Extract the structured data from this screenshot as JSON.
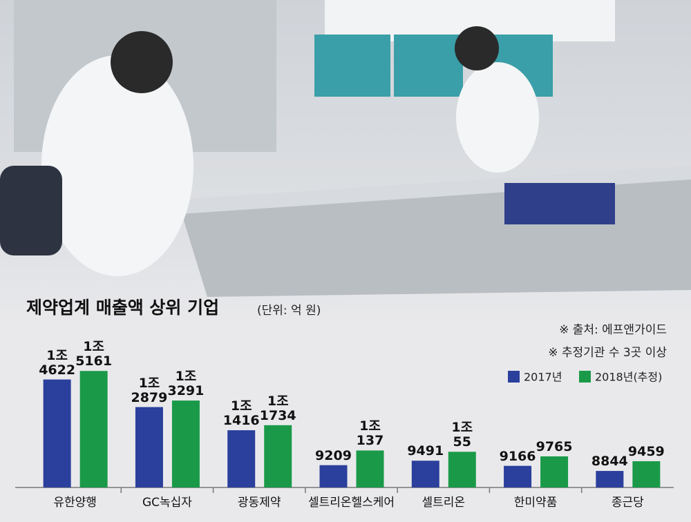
{
  "chart_data": {
    "type": "bar",
    "title": "제약업계 매출액 상위 기업",
    "subtitle": "(단위: 억 원)",
    "annotations": [
      "※ 출처: 에프앤가이드",
      "※ 추정기관 수 3곳 이상"
    ],
    "categories": [
      "유한양행",
      "GC녹십자",
      "광동제약",
      "셀트리온헬스케어",
      "셀트리온",
      "한미약품",
      "종근당"
    ],
    "series": [
      {
        "name": "2017년",
        "color": "#2b3f9c",
        "values": [
          14622,
          12879,
          11416,
          9209,
          9491,
          9166,
          8844
        ],
        "value_labels": [
          "1조\n4622",
          "1조\n2879",
          "1조\n1416",
          "9209",
          "9491",
          "9166",
          "8844"
        ]
      },
      {
        "name": "2018년(추정)",
        "color": "#1a9a48",
        "values": [
          15161,
          13291,
          11734,
          10137,
          10055,
          9765,
          9459
        ],
        "value_labels": [
          "1조\n5161",
          "1조\n3291",
          "1조\n1734",
          "1조\n137",
          "1조\n55",
          "9765",
          "9459"
        ]
      }
    ],
    "ylim": [
      7800,
      16000
    ],
    "legend": "upper right"
  }
}
